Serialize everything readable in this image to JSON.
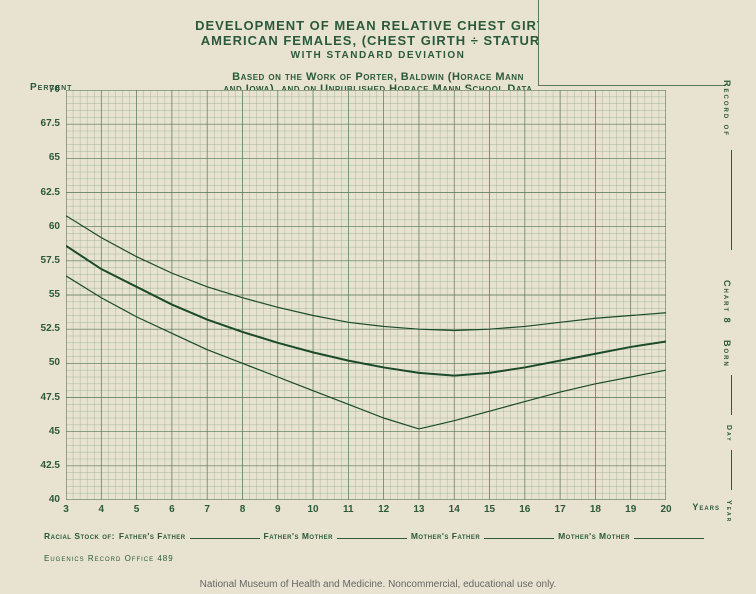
{
  "title": {
    "line1": "DEVELOPMENT OF MEAN RELATIVE CHEST GIRTH,",
    "line2": "AMERICAN FEMALES, (CHEST GIRTH ÷ STATURE)",
    "line3": "WITH STANDARD DEVIATION"
  },
  "subtitle": {
    "line1": "Based on the Work of Porter, Baldwin (Horace Mann",
    "line2": "and Iowa), and on Unpublished Horace Mann School Data"
  },
  "chart": {
    "type": "line",
    "x": {
      "label": "Years",
      "min": 3,
      "max": 20,
      "tick_step": 1
    },
    "y": {
      "label": "Percent",
      "min": 40,
      "max": 70,
      "tick_step": 2.5
    },
    "minor_grid_per_major": 5,
    "background_color": "#e8e2d0",
    "grid_color_minor": "#8aaa8a",
    "grid_color_major": "#5a7a5a",
    "line_color": "#1a4a2a",
    "line_width_mean": 2.0,
    "line_width_sd": 1.2,
    "series": {
      "upper_sd": [
        [
          3,
          60.8
        ],
        [
          4,
          59.2
        ],
        [
          5,
          57.8
        ],
        [
          6,
          56.6
        ],
        [
          7,
          55.6
        ],
        [
          8,
          54.8
        ],
        [
          9,
          54.1
        ],
        [
          10,
          53.5
        ],
        [
          11,
          53.0
        ],
        [
          12,
          52.7
        ],
        [
          13,
          52.5
        ],
        [
          14,
          52.4
        ],
        [
          15,
          52.5
        ],
        [
          16,
          52.7
        ],
        [
          17,
          53.0
        ],
        [
          18,
          53.3
        ],
        [
          19,
          53.5
        ],
        [
          20,
          53.7
        ]
      ],
      "mean": [
        [
          3,
          58.6
        ],
        [
          4,
          56.9
        ],
        [
          5,
          55.6
        ],
        [
          6,
          54.3
        ],
        [
          7,
          53.2
        ],
        [
          8,
          52.3
        ],
        [
          9,
          51.5
        ],
        [
          10,
          50.8
        ],
        [
          11,
          50.2
        ],
        [
          12,
          49.7
        ],
        [
          13,
          49.3
        ],
        [
          14,
          49.1
        ],
        [
          15,
          49.3
        ],
        [
          16,
          49.7
        ],
        [
          17,
          50.2
        ],
        [
          18,
          50.7
        ],
        [
          19,
          51.2
        ],
        [
          20,
          51.6
        ]
      ],
      "lower_sd": [
        [
          3,
          56.4
        ],
        [
          4,
          54.8
        ],
        [
          5,
          53.4
        ],
        [
          6,
          52.2
        ],
        [
          7,
          51.0
        ],
        [
          8,
          50.0
        ],
        [
          9,
          49.0
        ],
        [
          10,
          48.0
        ],
        [
          11,
          47.0
        ],
        [
          12,
          46.0
        ],
        [
          13,
          45.2
        ],
        [
          14,
          45.8
        ],
        [
          15,
          46.5
        ],
        [
          16,
          47.2
        ],
        [
          17,
          47.9
        ],
        [
          18,
          48.5
        ],
        [
          19,
          49.0
        ],
        [
          20,
          49.5
        ]
      ]
    }
  },
  "form": {
    "prefix": "Racial Stock of:",
    "fields": [
      "Father's Father",
      "Father's Mother",
      "Mother's Father",
      "Mother's Mother"
    ]
  },
  "right_side": {
    "record_of": "Record of",
    "chart_no": "Chart 8",
    "born": "Born",
    "day": "Day",
    "year": "Year"
  },
  "office": "Eugenics Record Office 489",
  "caption": "National Museum of Health and Medicine. Noncommercial, educational use only.",
  "colors": {
    "text": "#2a5a3a",
    "page_bg": "#e8e2d0"
  }
}
